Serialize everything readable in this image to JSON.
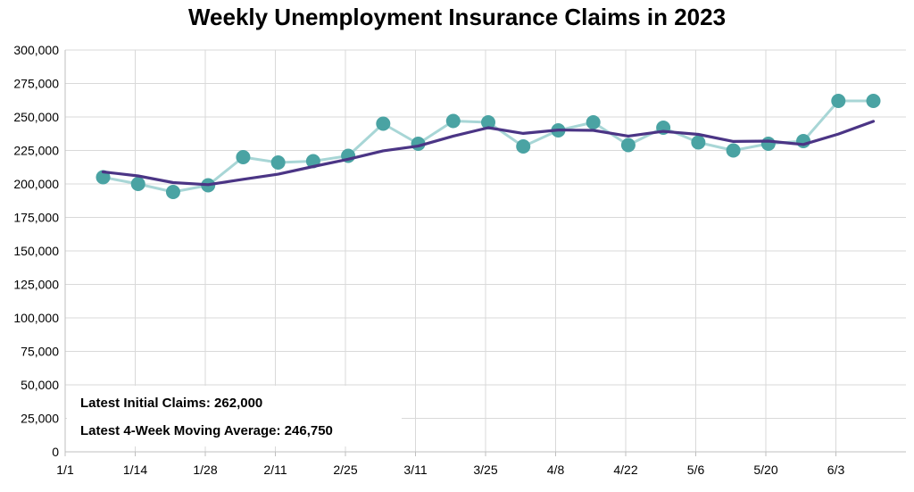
{
  "chart_data": {
    "type": "line",
    "title": "Weekly Unemployment Insurance Claims in 2023",
    "xlabel": "",
    "ylabel": "",
    "ylim": [
      0,
      300000
    ],
    "y_ticks": [
      "0",
      "25,000",
      "50,000",
      "75,000",
      "100,000",
      "125,000",
      "150,000",
      "175,000",
      "200,000",
      "225,000",
      "250,000",
      "275,000",
      "300,000"
    ],
    "x_tick_labels": [
      "1/1",
      "1/14",
      "1/28",
      "2/11",
      "2/25",
      "3/11",
      "3/25",
      "4/8",
      "4/22",
      "5/6",
      "5/20",
      "6/3"
    ],
    "grid": true,
    "legend": "none",
    "series": [
      {
        "name": "Initial Claims",
        "color": "#4aa3a3",
        "line_color": "#a8d6d6",
        "markers": true,
        "values": [
          205000,
          200000,
          194000,
          199000,
          220000,
          216000,
          217000,
          221000,
          245000,
          230000,
          247000,
          246000,
          228000,
          240000,
          246000,
          229000,
          242000,
          231000,
          225000,
          230000,
          232000,
          262000,
          262000
        ]
      },
      {
        "name": "4-Week Moving Average",
        "color": "#4b3585",
        "markers": false,
        "values": [
          209000,
          206000,
          201000,
          199500,
          203500,
          207250,
          213000,
          218500,
          224750,
          228250,
          235750,
          242000,
          237750,
          240250,
          240000,
          235750,
          239250,
          237000,
          231750,
          232000,
          229500,
          237250,
          246750
        ]
      }
    ],
    "annotations": [
      {
        "text": "Latest Initial Claims: 262,000",
        "color": "#4aa3a3"
      },
      {
        "text": "Latest 4-Week Moving Average: 246,750",
        "color": "#4b3585"
      }
    ]
  }
}
